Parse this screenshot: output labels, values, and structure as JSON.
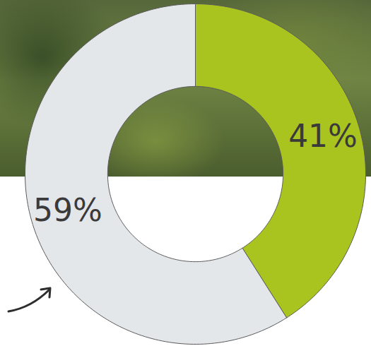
{
  "chart_data": {
    "type": "pie",
    "values": [
      41,
      59
    ],
    "value_labels": [
      "41%",
      "59%"
    ],
    "colors": [
      "#a9c41f",
      "#e4e7ea"
    ],
    "data_labels": true
  }
}
